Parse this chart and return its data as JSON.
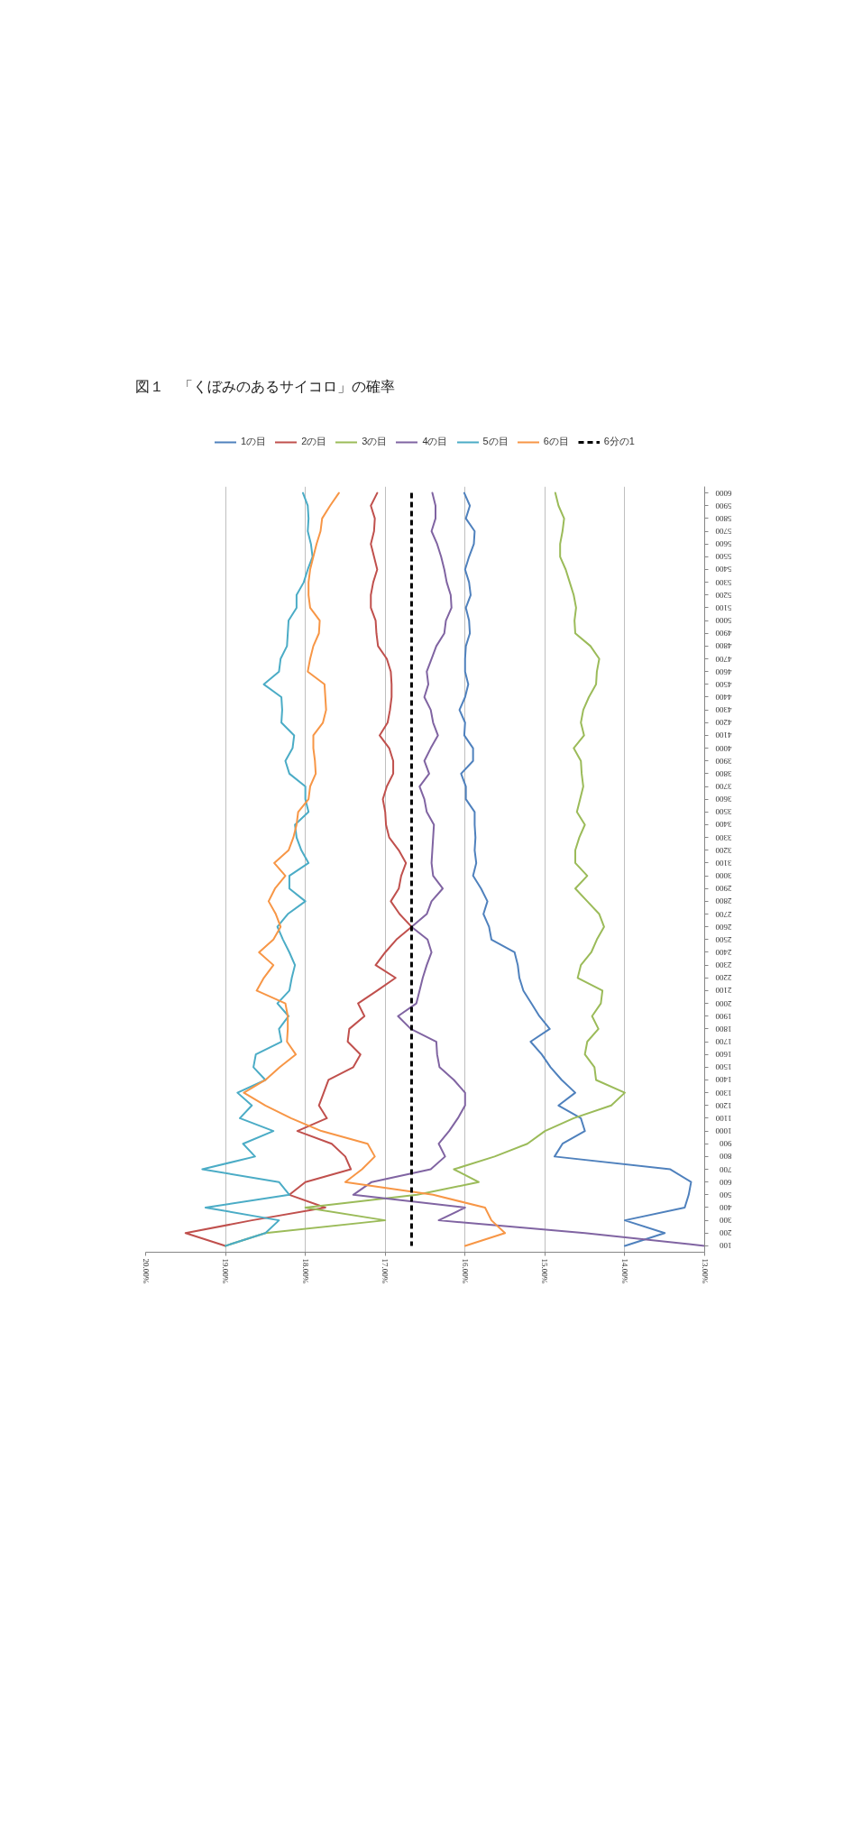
{
  "chart_data": {
    "type": "line",
    "title": "図１　「くぼみのあるサイコロ」の確率",
    "orientation": "horizontal",
    "categories": [
      "6000",
      "5900",
      "5800",
      "5700",
      "5600",
      "5500",
      "5400",
      "5300",
      "5200",
      "5100",
      "5000",
      "4900",
      "4800",
      "4700",
      "4600",
      "4500",
      "4400",
      "4300",
      "4200",
      "4100",
      "4000",
      "3900",
      "3800",
      "3700",
      "3600",
      "3500",
      "3400",
      "3300",
      "3200",
      "3100",
      "3000",
      "2900",
      "2800",
      "2700",
      "2600",
      "2500",
      "2400",
      "2300",
      "2200",
      "2100",
      "2000",
      "1900",
      "1800",
      "1700",
      "1600",
      "1500",
      "1400",
      "1300",
      "1200",
      "1100",
      "1000",
      "900",
      "800",
      "700",
      "600",
      "500",
      "400",
      "300",
      "200",
      "100"
    ],
    "series": [
      {
        "name": "1の目",
        "color": "#4f81bd",
        "values": [
          16.01,
          15.94,
          15.99,
          15.88,
          15.89,
          15.95,
          16.0,
          15.95,
          15.93,
          15.99,
          15.95,
          15.94,
          15.99,
          16.0,
          16.0,
          15.96,
          16.0,
          16.07,
          16.0,
          16.01,
          15.9,
          15.9,
          16.05,
          15.99,
          15.99,
          15.88,
          15.88,
          15.87,
          15.88,
          15.86,
          15.9,
          15.8,
          15.72,
          15.77,
          15.7,
          15.67,
          15.38,
          15.34,
          15.32,
          15.27,
          15.17,
          15.07,
          14.94,
          15.18,
          15.04,
          14.93,
          14.79,
          14.62,
          14.83,
          14.55,
          14.5,
          14.78,
          14.88,
          13.43,
          13.17,
          13.2,
          13.25,
          14.0,
          13.5,
          14.0
        ]
      },
      {
        "name": "2の目",
        "color": "#c0504d",
        "values": [
          17.1,
          17.18,
          17.13,
          17.14,
          17.18,
          17.14,
          17.1,
          17.15,
          17.18,
          17.18,
          17.12,
          17.11,
          17.09,
          16.98,
          16.93,
          16.92,
          16.92,
          16.94,
          16.97,
          17.07,
          16.95,
          16.9,
          16.9,
          16.98,
          17.03,
          17.0,
          16.99,
          16.95,
          16.83,
          16.74,
          16.8,
          16.83,
          16.93,
          16.82,
          16.67,
          16.86,
          17.0,
          17.12,
          16.87,
          17.1,
          17.34,
          17.26,
          17.45,
          17.47,
          17.31,
          17.4,
          17.71,
          17.77,
          17.83,
          17.73,
          18.1,
          17.67,
          17.5,
          17.43,
          18.0,
          18.2,
          17.75,
          18.67,
          19.5,
          19.0
        ]
      },
      {
        "name": "3の目",
        "color": "#9bbb59",
        "values": [
          14.87,
          14.83,
          14.76,
          14.78,
          14.81,
          14.81,
          14.74,
          14.69,
          14.64,
          14.61,
          14.63,
          14.62,
          14.43,
          14.32,
          14.35,
          14.36,
          14.45,
          14.52,
          14.55,
          14.51,
          14.64,
          14.55,
          14.54,
          14.52,
          14.56,
          14.6,
          14.5,
          14.57,
          14.62,
          14.62,
          14.47,
          14.62,
          14.47,
          14.32,
          14.26,
          14.35,
          14.42,
          14.55,
          14.59,
          14.28,
          14.3,
          14.41,
          14.33,
          14.47,
          14.5,
          14.38,
          14.36,
          14.0,
          14.17,
          14.64,
          15.0,
          15.22,
          15.63,
          16.14,
          15.83,
          16.6,
          18.0,
          17.0,
          18.5,
          19.0
        ]
      },
      {
        "name": "4の目",
        "color": "#8064a2",
        "values": [
          16.41,
          16.37,
          16.37,
          16.42,
          16.35,
          16.3,
          16.26,
          16.23,
          16.18,
          16.17,
          16.24,
          16.26,
          16.36,
          16.42,
          16.48,
          16.46,
          16.51,
          16.43,
          16.4,
          16.34,
          16.43,
          16.51,
          16.45,
          16.57,
          16.51,
          16.48,
          16.39,
          16.4,
          16.41,
          16.42,
          16.4,
          16.28,
          16.42,
          16.48,
          16.67,
          16.47,
          16.42,
          16.48,
          16.53,
          16.57,
          16.61,
          16.84,
          16.68,
          16.36,
          16.35,
          16.32,
          16.14,
          16.0,
          16.0,
          16.09,
          16.2,
          16.33,
          16.25,
          16.43,
          17.17,
          17.4,
          16.0,
          16.33,
          14.5,
          13.0
        ]
      },
      {
        "name": "5の目",
        "color": "#4bacc6",
        "values": [
          18.03,
          17.97,
          17.96,
          17.97,
          17.93,
          17.91,
          17.97,
          18.02,
          18.11,
          18.11,
          18.21,
          18.22,
          18.23,
          18.31,
          18.33,
          18.52,
          18.3,
          18.29,
          18.3,
          18.14,
          18.16,
          18.25,
          18.2,
          18.0,
          18.0,
          17.96,
          18.13,
          18.11,
          18.05,
          17.96,
          18.2,
          18.2,
          18.0,
          18.22,
          18.35,
          18.28,
          18.2,
          18.13,
          18.17,
          18.2,
          18.35,
          18.21,
          18.33,
          18.3,
          18.62,
          18.65,
          18.5,
          18.85,
          18.67,
          18.82,
          18.4,
          18.78,
          18.63,
          19.29,
          18.33,
          18.2,
          19.25,
          18.33,
          18.5,
          19.0
        ]
      },
      {
        "name": "6の目",
        "color": "#f79646",
        "values": [
          17.58,
          17.69,
          17.79,
          17.81,
          17.86,
          17.9,
          17.94,
          17.96,
          17.96,
          17.94,
          17.82,
          17.83,
          17.9,
          17.94,
          17.97,
          17.76,
          17.75,
          17.74,
          17.78,
          17.9,
          17.9,
          17.88,
          17.87,
          17.94,
          17.96,
          18.09,
          18.11,
          18.15,
          18.21,
          18.39,
          18.25,
          18.38,
          18.46,
          18.37,
          18.31,
          18.4,
          18.58,
          18.4,
          18.52,
          18.61,
          18.25,
          18.22,
          18.22,
          18.23,
          18.12,
          18.32,
          18.5,
          18.77,
          18.5,
          18.18,
          17.8,
          17.22,
          17.13,
          17.29,
          17.5,
          16.4,
          15.75,
          15.67,
          15.5,
          16.0
        ]
      },
      {
        "name": "6分の1",
        "color": "#000000",
        "line_style": "dashed",
        "values": [
          16.67,
          16.67,
          16.67,
          16.67,
          16.67,
          16.67,
          16.67,
          16.67,
          16.67,
          16.67,
          16.67,
          16.67,
          16.67,
          16.67,
          16.67,
          16.67,
          16.67,
          16.67,
          16.67,
          16.67,
          16.67,
          16.67,
          16.67,
          16.67,
          16.67,
          16.67,
          16.67,
          16.67,
          16.67,
          16.67,
          16.67,
          16.67,
          16.67,
          16.67,
          16.67,
          16.67,
          16.67,
          16.67,
          16.67,
          16.67,
          16.67,
          16.67,
          16.67,
          16.67,
          16.67,
          16.67,
          16.67,
          16.67,
          16.67,
          16.67,
          16.67,
          16.67,
          16.67,
          16.67,
          16.67,
          16.67,
          16.67,
          16.67,
          16.67,
          16.67
        ]
      }
    ],
    "xlim": [
      20,
      13
    ],
    "xticks": [
      {
        "value": 20,
        "label": "20.00%"
      },
      {
        "value": 19,
        "label": "19.00%"
      },
      {
        "value": 18,
        "label": "18.00%"
      },
      {
        "value": 17,
        "label": "17.00%"
      },
      {
        "value": 16,
        "label": "16.00%"
      },
      {
        "value": 15,
        "label": "15.00%"
      },
      {
        "value": 14,
        "label": "14.00%"
      },
      {
        "value": 13,
        "label": "13.00%"
      }
    ],
    "grid": "x",
    "legend": "top"
  }
}
